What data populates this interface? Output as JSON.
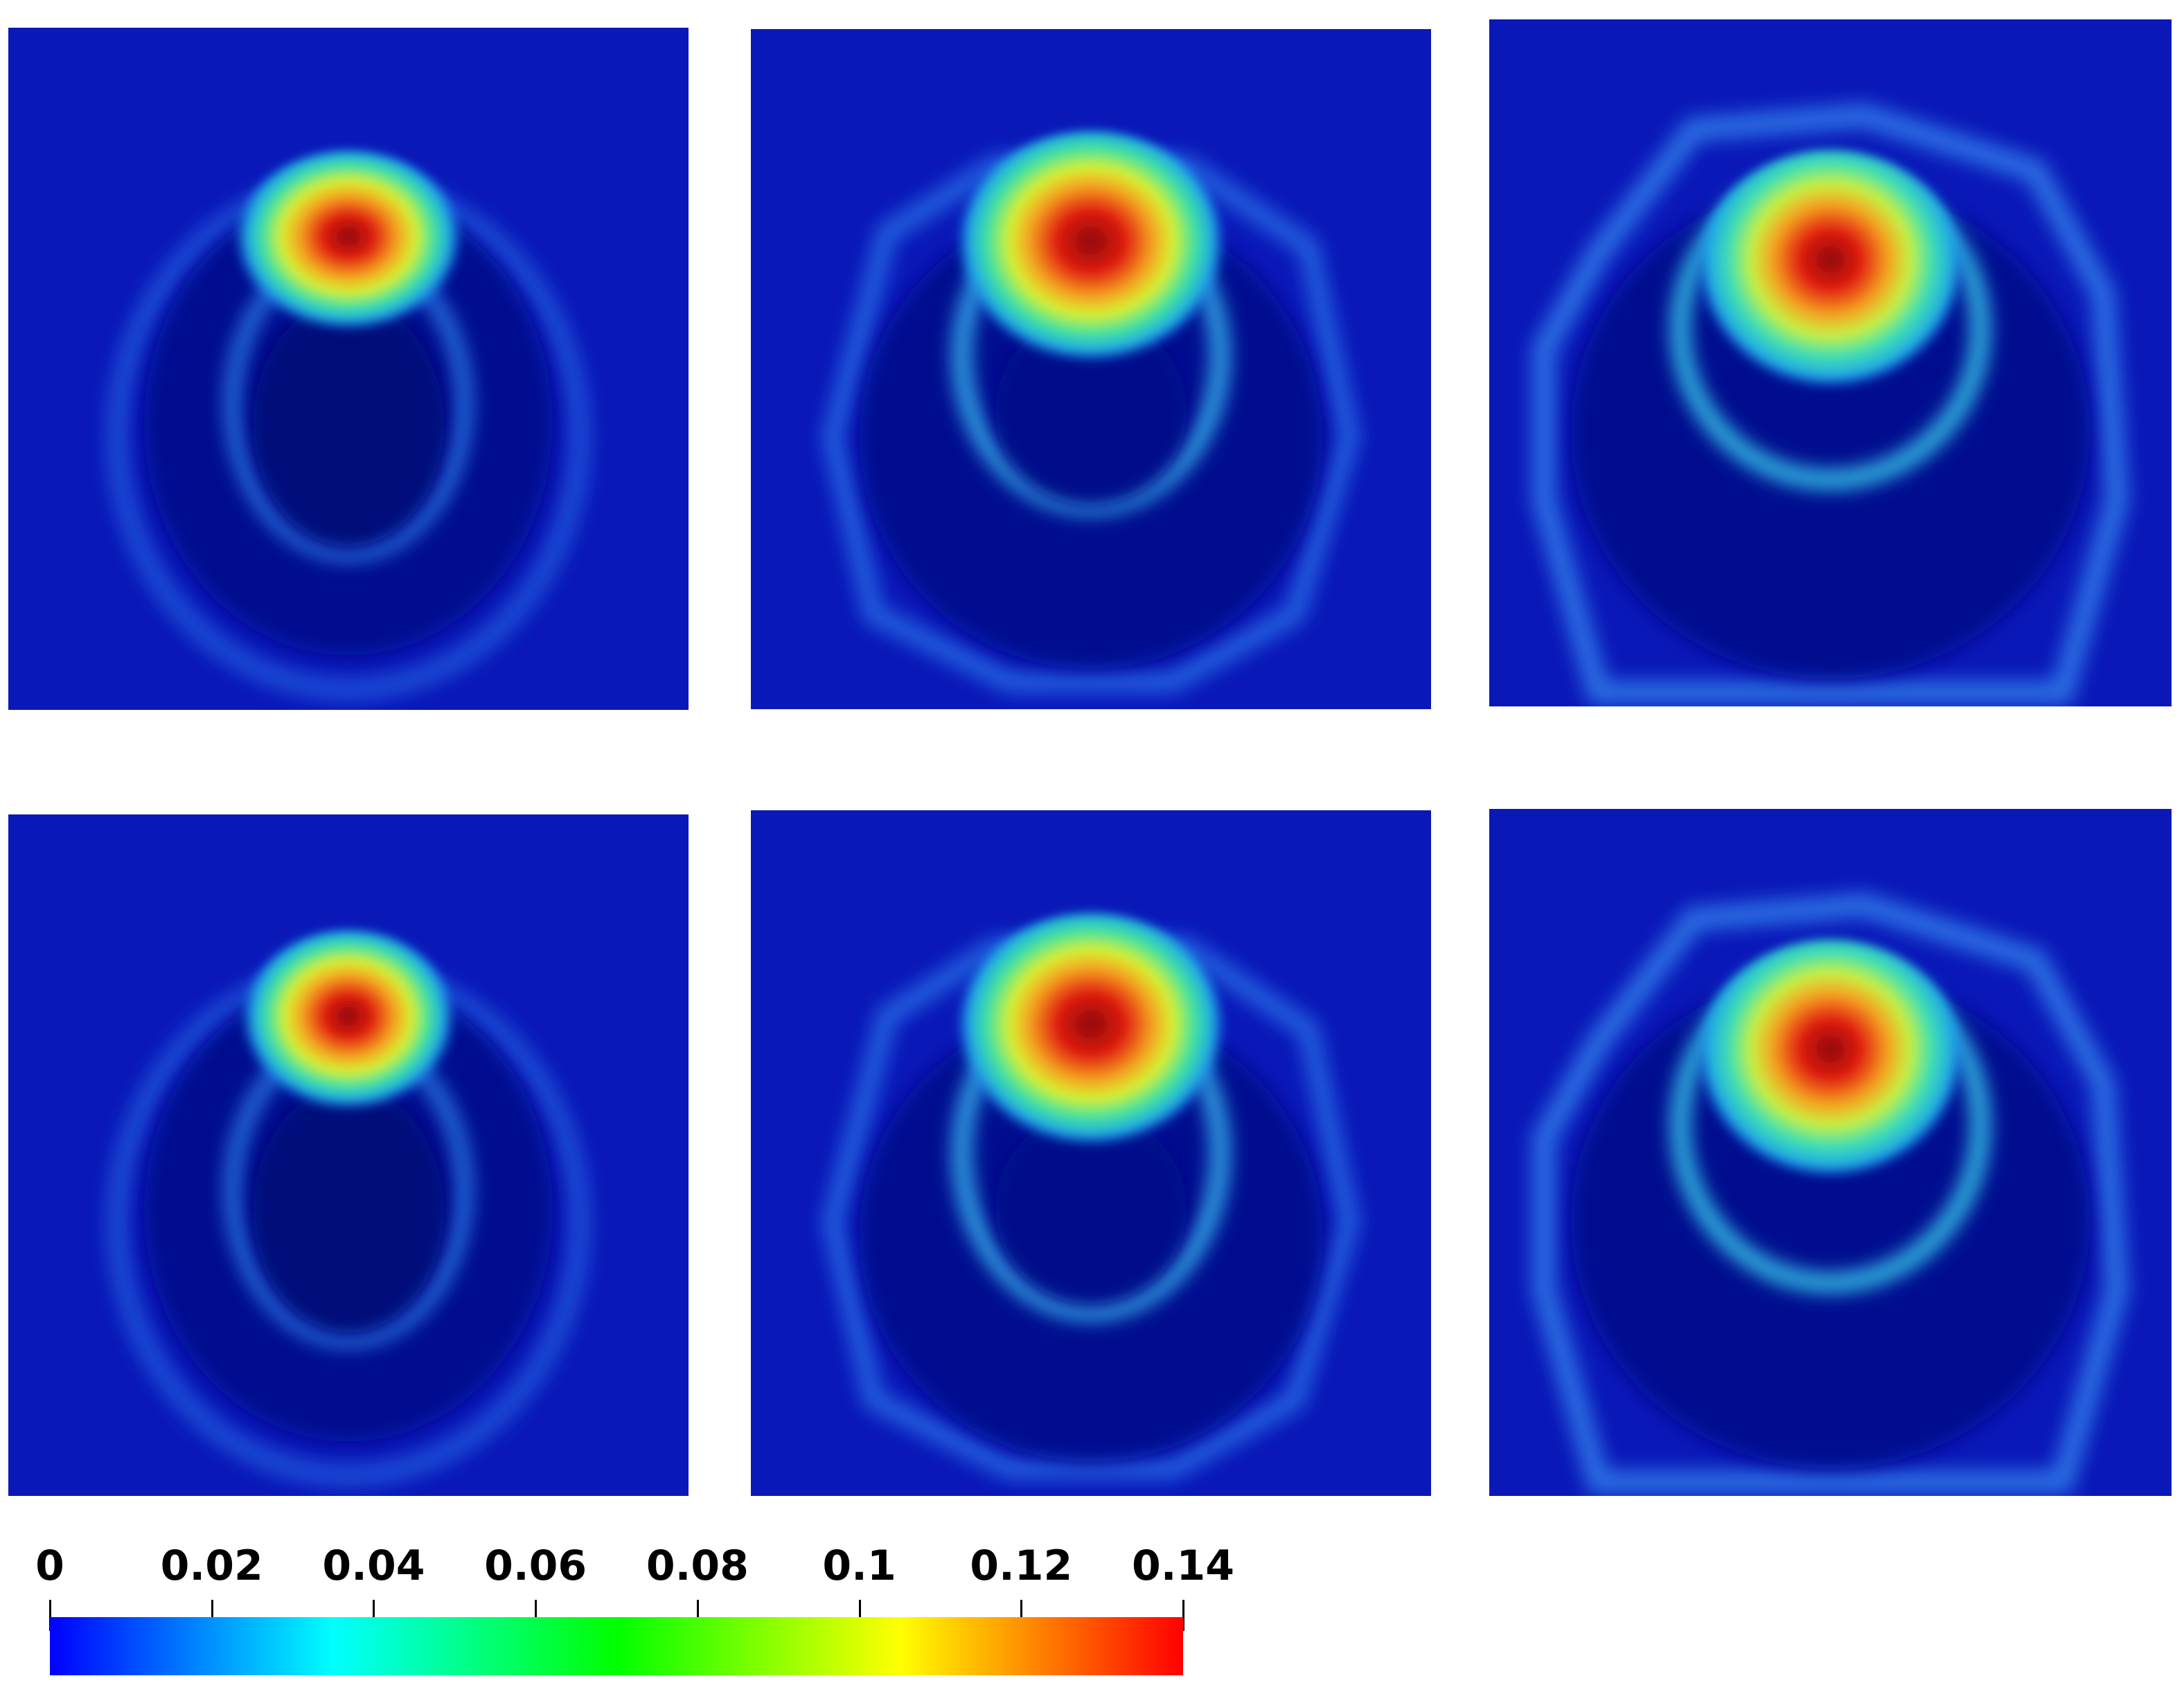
{
  "colorbar": {
    "min": 0,
    "max": 0.14,
    "colors": [
      "#0000ff",
      "#00ffff",
      "#00ff00",
      "#ffff00",
      "#ff0000"
    ],
    "ticks": [
      {
        "value": 0,
        "label": "0"
      },
      {
        "value": 0.02,
        "label": "0.02"
      },
      {
        "value": 0.04,
        "label": "0.04"
      },
      {
        "value": 0.06,
        "label": "0.06"
      },
      {
        "value": 0.08,
        "label": "0.08"
      },
      {
        "value": 0.1,
        "label": "0.1"
      },
      {
        "value": 0.12,
        "label": "0.12"
      },
      {
        "value": 0.14,
        "label": "0.14"
      }
    ]
  },
  "panels": {
    "count": 6,
    "layout": "2 rows x 3 columns",
    "field_colors": {
      "background": "#0a18b8",
      "dark_core": "#020b7a",
      "ring": "#1e5ee6",
      "cyan": "#25d6e8",
      "green": "#6fe05a",
      "yellow": "#f5e22a",
      "orange": "#f28a1a",
      "red": "#e01a10",
      "dark_red": "#9a0d08"
    }
  }
}
